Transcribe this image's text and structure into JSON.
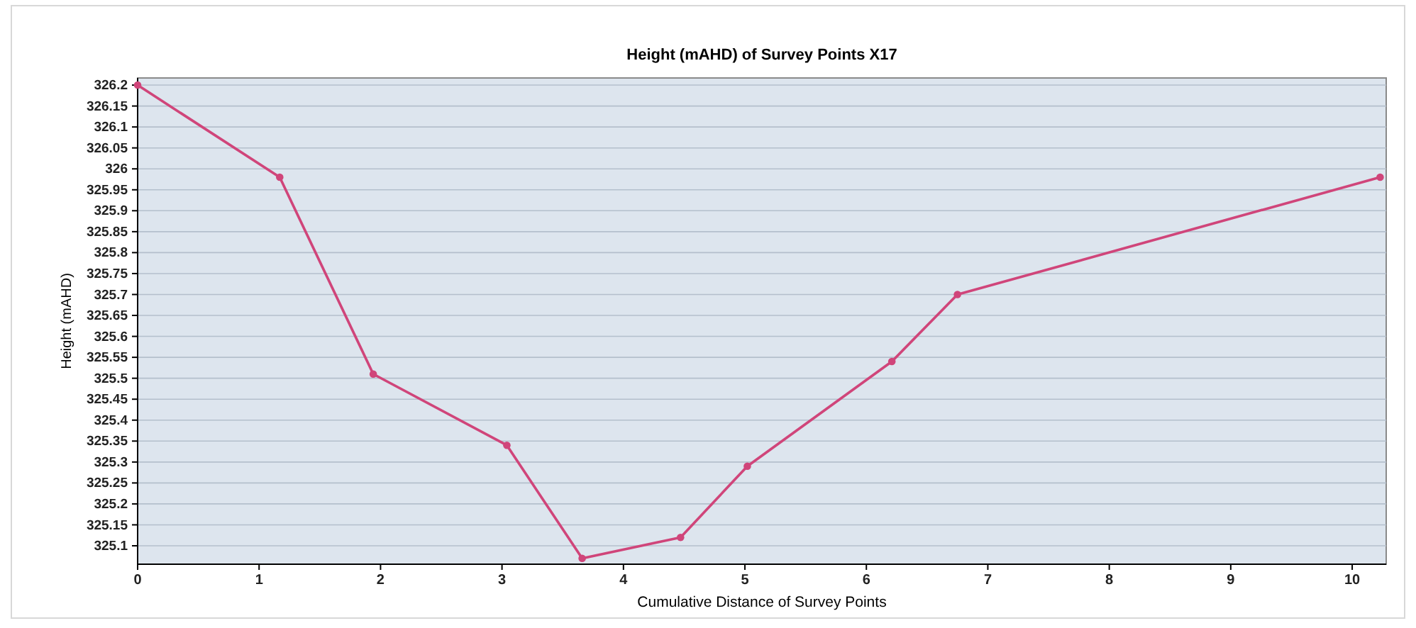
{
  "chart_data": {
    "type": "line",
    "title": "Height (mAHD) of Survey Points X17",
    "xlabel": "Cumulative Distance of Survey Points",
    "ylabel": "Height (mAHD)",
    "x": [
      0,
      1.17,
      1.94,
      3.04,
      3.66,
      4.47,
      5.02,
      6.21,
      6.75,
      10.23
    ],
    "series": [
      {
        "color": "#d0457a",
        "values": [
          326.2,
          325.98,
          325.51,
          325.34,
          325.07,
          325.12,
          325.29,
          325.54,
          325.7,
          325.98
        ]
      }
    ],
    "xlim": [
      0,
      10.28
    ],
    "xticks": [
      0,
      1,
      2,
      3,
      4,
      5,
      6,
      7,
      8,
      9,
      10
    ],
    "ylim": [
      325.056,
      326.217
    ],
    "yticks": [
      325.1,
      325.15,
      325.2,
      325.25,
      325.3,
      325.35,
      325.4,
      325.45,
      325.5,
      325.55,
      325.6,
      325.65,
      325.7,
      325.75,
      325.8,
      325.85,
      325.9,
      325.95,
      326,
      326.05,
      326.1,
      326.15,
      326.2
    ],
    "grid": "y",
    "marker": "circle",
    "line_style": "solid"
  }
}
